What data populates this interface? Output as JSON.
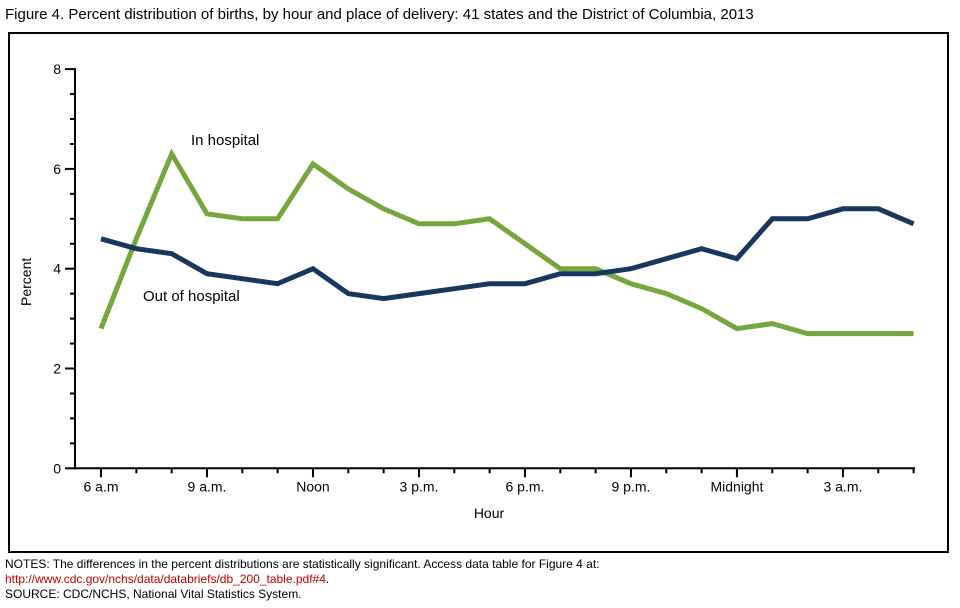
{
  "title": "Figure 4. Percent distribution of births, by hour and place of delivery: 41 states and the District of Columbia, 2013",
  "chart_data": {
    "type": "line",
    "x": [
      "6 a.m.",
      "7 a.m.",
      "8 a.m.",
      "9 a.m.",
      "10 a.m.",
      "11 a.m.",
      "Noon",
      "1 p.m.",
      "2 p.m.",
      "3 p.m.",
      "4 p.m.",
      "5 p.m.",
      "6 p.m.",
      "7 p.m.",
      "8 p.m.",
      "9 p.m.",
      "10 p.m.",
      "11 p.m.",
      "Midnight",
      "1 a.m.",
      "2 a.m.",
      "3 a.m.",
      "4 a.m.",
      "5 a.m."
    ],
    "series": [
      {
        "name": "In hospital",
        "color": "#76A73E",
        "values": [
          2.8,
          4.6,
          6.3,
          5.1,
          5.0,
          5.0,
          6.1,
          5.6,
          5.2,
          4.9,
          4.9,
          5.0,
          4.5,
          4.0,
          4.0,
          3.7,
          3.5,
          3.2,
          2.8,
          2.9,
          2.7,
          2.7,
          2.7,
          2.7
        ]
      },
      {
        "name": "Out of hospital",
        "color": "#17375E",
        "values": [
          4.6,
          4.4,
          4.3,
          3.9,
          3.8,
          3.7,
          4.0,
          3.5,
          3.4,
          3.5,
          3.6,
          3.7,
          3.7,
          3.9,
          3.9,
          4.0,
          4.2,
          4.4,
          4.2,
          5.0,
          5.0,
          5.2,
          5.2,
          4.9
        ]
      }
    ],
    "title": "Figure 4. Percent distribution of births, by hour and place of delivery: 41 states and the District of Columbia, 2013",
    "xlabel": "Hour",
    "ylabel": "Percent",
    "ylim": [
      0,
      8
    ],
    "y_major_ticks": [
      0,
      2,
      4,
      6,
      8
    ],
    "y_minor_step": 0.5,
    "x_major_tick_labels": [
      "6 a.m",
      "9 a.m.",
      "Noon",
      "3 p.m.",
      "6 p.m.",
      "9 p.m.",
      "Midnight",
      "3 a.m."
    ],
    "x_major_every": 3,
    "grid": false,
    "legend_position": "inline-labels"
  },
  "annotations": {
    "in_hospital_label": "In hospital",
    "out_of_hospital_label": "Out of hospital"
  },
  "notes": {
    "line1": "NOTES: The differences in the percent distributions are statistically significant. Access data table for Figure 4 at:",
    "link": "http://www.cdc.gov/nchs/data/databriefs/db_200_table.pdf#4",
    "link_suffix": ".",
    "source": "SOURCE: CDC/NCHS, National Vital Statistics System."
  },
  "colors": {
    "in_hospital": "#76A73E",
    "out_of_hospital": "#17375E",
    "link": "#C00000",
    "axis": "#000000",
    "background": "#FFFFFF"
  }
}
